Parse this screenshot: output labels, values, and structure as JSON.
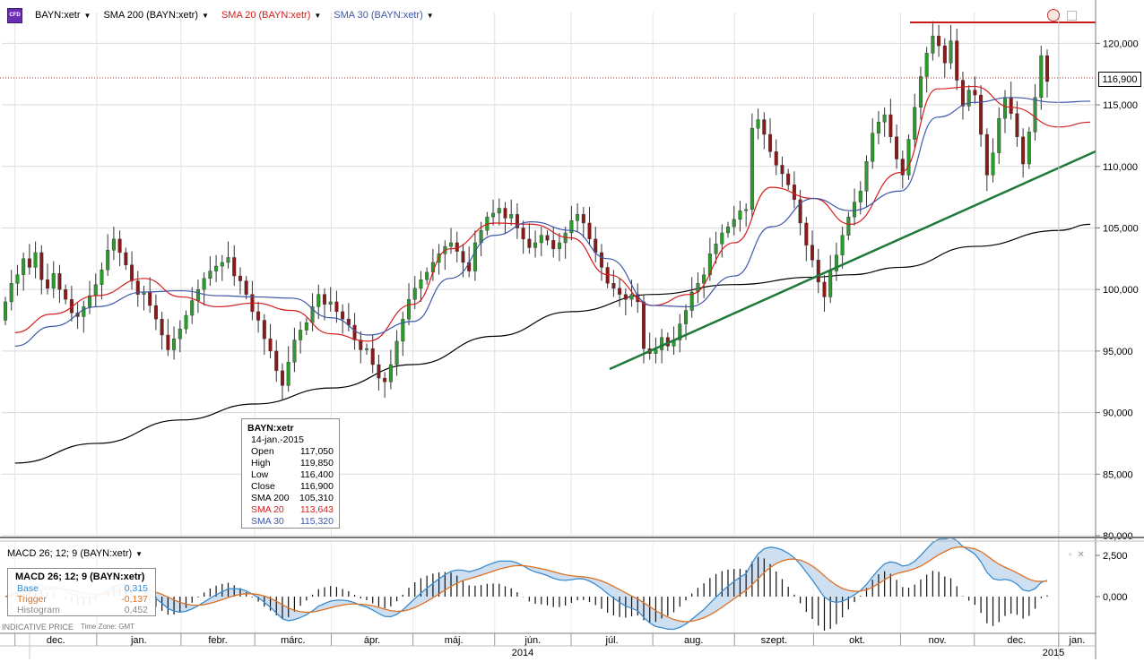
{
  "legend": {
    "items": [
      {
        "label": "BAYN:xetr",
        "color": "#000000"
      },
      {
        "label": "SMA 200 (BAYN:xetr)",
        "color": "#000000"
      },
      {
        "label": "SMA 20 (BAYN:xetr)",
        "color": "#d41c1c"
      },
      {
        "label": "SMA 30 (BAYN:xetr)",
        "color": "#3d57a8"
      }
    ]
  },
  "last_price_label": "116,900",
  "info_box": {
    "title": "BAYN:xetr",
    "date": "14-jan.-2015",
    "rows": [
      {
        "label": "Open",
        "value": "117,050",
        "color": "#000000"
      },
      {
        "label": "High",
        "value": "119,850",
        "color": "#000000"
      },
      {
        "label": "Low",
        "value": "116,400",
        "color": "#000000"
      },
      {
        "label": "Close",
        "value": "116,900",
        "color": "#000000"
      },
      {
        "label": "SMA 200",
        "value": "105,310",
        "color": "#000000"
      },
      {
        "label": "SMA 20",
        "value": "113,643",
        "color": "#d41c1c"
      },
      {
        "label": "SMA 30",
        "value": "115,320",
        "color": "#3d57a8"
      }
    ]
  },
  "macd": {
    "legend_label": "MACD 26; 12; 9 (BAYN:xetr)",
    "box_title": "MACD 26; 12; 9 (BAYN:xetr)",
    "rows": [
      {
        "label": "Base",
        "value": "0,315",
        "color": "#3a8cd0"
      },
      {
        "label": "Trigger",
        "value": "-0,137",
        "color": "#e07020"
      },
      {
        "label": "Histogram",
        "value": "0,452",
        "color": "#888888"
      }
    ],
    "y_ticks": [
      "2,500",
      "0,000"
    ]
  },
  "footer": {
    "note": "INDICATIVE PRICE",
    "timezone": "Time Zone: GMT"
  },
  "x_axis": {
    "months": [
      "dec.",
      "jan.",
      "febr.",
      "márc.",
      "ápr.",
      "máj.",
      "jún.",
      "júl.",
      "aug.",
      "szept.",
      "okt.",
      "nov.",
      "dec.",
      "jan."
    ],
    "years": [
      "2014",
      "2015"
    ]
  },
  "chart_data": {
    "type": "candlestick",
    "title": "BAYN:xetr",
    "y_ticks": [
      "80,000",
      "85,000",
      "90,000",
      "95,000",
      "100,000",
      "105,000",
      "110,000",
      "115,000",
      "120,000"
    ],
    "ylim": [
      80,
      122.5
    ],
    "grid": true,
    "series": [
      {
        "name": "SMA 200 (BAYN:xetr)",
        "color": "#000000",
        "x": [
          "2013-12-02",
          "2014-01-02",
          "2014-02-03",
          "2014-03-03",
          "2014-04-01",
          "2014-05-02",
          "2014-06-02",
          "2014-07-01",
          "2014-08-01",
          "2014-09-01",
          "2014-10-01",
          "2014-10-15",
          "2014-11-03",
          "2014-12-01",
          "2015-01-02",
          "2015-01-14"
        ],
        "y": [
          85.9,
          87.5,
          89.4,
          90.7,
          92.0,
          93.9,
          96.2,
          98.2,
          99.6,
          100.4,
          101.0,
          101.2,
          101.8,
          103.5,
          104.8,
          105.3
        ]
      },
      {
        "name": "SMA 20 (BAYN:xetr)",
        "color": "#d41c1c",
        "x": [
          "2013-12-02",
          "2013-12-16",
          "2014-01-02",
          "2014-01-20",
          "2014-02-03",
          "2014-02-17",
          "2014-03-03",
          "2014-03-17",
          "2014-04-01",
          "2014-04-15",
          "2014-05-02",
          "2014-05-16",
          "2014-06-02",
          "2014-06-16",
          "2014-07-01",
          "2014-07-15",
          "2014-08-01",
          "2014-08-15",
          "2014-09-01",
          "2014-09-15",
          "2014-10-01",
          "2014-10-15",
          "2014-11-03",
          "2014-11-17",
          "2014-12-01",
          "2014-12-15",
          "2015-01-02",
          "2015-01-14"
        ],
        "y": [
          96.5,
          98.0,
          99.5,
          100.9,
          99.4,
          98.6,
          98.9,
          98.3,
          96.4,
          95.8,
          98.8,
          103.3,
          105.4,
          105.3,
          104.2,
          101.2,
          98.7,
          99.6,
          103.8,
          108.3,
          107.4,
          105.3,
          109.5,
          116.3,
          116.5,
          114.8,
          113.2,
          113.6
        ]
      },
      {
        "name": "SMA 30 (BAYN:xetr)",
        "color": "#3d57a8",
        "x": [
          "2013-12-02",
          "2013-12-16",
          "2014-01-02",
          "2014-01-20",
          "2014-02-03",
          "2014-02-17",
          "2014-03-03",
          "2014-03-17",
          "2014-04-01",
          "2014-04-15",
          "2014-05-02",
          "2014-05-16",
          "2014-06-02",
          "2014-06-16",
          "2014-07-01",
          "2014-07-15",
          "2014-08-01",
          "2014-08-15",
          "2014-09-01",
          "2014-09-15",
          "2014-10-01",
          "2014-10-15",
          "2014-11-03",
          "2014-11-17",
          "2014-12-01",
          "2014-12-15",
          "2015-01-02",
          "2015-01-14"
        ],
        "y": [
          95.4,
          97.0,
          98.6,
          99.8,
          99.9,
          99.5,
          99.4,
          99.3,
          97.7,
          96.3,
          97.4,
          100.9,
          104.4,
          105.5,
          104.8,
          102.5,
          98.7,
          98.6,
          101.1,
          105.1,
          107.4,
          106.4,
          108.0,
          114.0,
          115.2,
          115.6,
          115.2,
          115.3
        ]
      }
    ],
    "candles": {
      "note": "daily OHLC, approximated; last bar 14-jan.-2015 O 117,050 H 119,850 L 116,400 C 116,900",
      "close": [
        99.0,
        100.5,
        101.2,
        102.5,
        101.8,
        103.0,
        100.8,
        100.1,
        101.3,
        100.0,
        99.2,
        98.1,
        97.8,
        98.6,
        99.5,
        100.4,
        101.6,
        103.2,
        104.1,
        103.0,
        102.0,
        100.7,
        99.6,
        99.8,
        98.7,
        97.6,
        96.3,
        95.1,
        96.0,
        96.8,
        97.9,
        99.1,
        100.0,
        100.9,
        101.5,
        101.9,
        102.2,
        102.6,
        101.1,
        100.7,
        99.6,
        98.2,
        97.5,
        96.0,
        95.0,
        93.4,
        92.2,
        94.1,
        95.9,
        96.7,
        97.3,
        98.6,
        99.6,
        98.8,
        99.0,
        98.2,
        97.6,
        97.1,
        95.9,
        95.1,
        95.2,
        93.9,
        92.8,
        92.5,
        93.9,
        95.8,
        97.6,
        99.2,
        100.1,
        100.8,
        101.4,
        102.2,
        102.9,
        103.5,
        103.8,
        103.1,
        102.2,
        101.5,
        103.8,
        104.8,
        105.9,
        106.2,
        106.6,
        105.8,
        106.1,
        105.0,
        104.1,
        103.4,
        103.8,
        104.4,
        104.0,
        103.3,
        103.8,
        104.6,
        105.6,
        106.1,
        105.4,
        104.1,
        103.0,
        101.8,
        100.5,
        100.1,
        99.6,
        99.2,
        99.6,
        99.0,
        95.2,
        94.8,
        95.1,
        96.1,
        95.4,
        95.9,
        97.2,
        98.3,
        99.8,
        100.5,
        101.2,
        102.9,
        103.7,
        104.6,
        105.1,
        105.7,
        106.4,
        106.5,
        113.1,
        113.8,
        112.6,
        111.2,
        110.1,
        109.4,
        108.5,
        107.3,
        105.4,
        103.6,
        102.4,
        100.6,
        99.4,
        101.5,
        102.8,
        104.4,
        105.9,
        107.1,
        108.0,
        110.4,
        112.7,
        113.6,
        114.2,
        112.4,
        110.6,
        109.3,
        112.2,
        114.8,
        117.3,
        119.2,
        120.6,
        119.8,
        118.4,
        120.2,
        117.0,
        114.9,
        116.2,
        115.8,
        112.6,
        109.3,
        111.1,
        113.9,
        115.6,
        114.3,
        112.4,
        110.2,
        112.8,
        115.6,
        119.0,
        116.9
      ]
    }
  }
}
